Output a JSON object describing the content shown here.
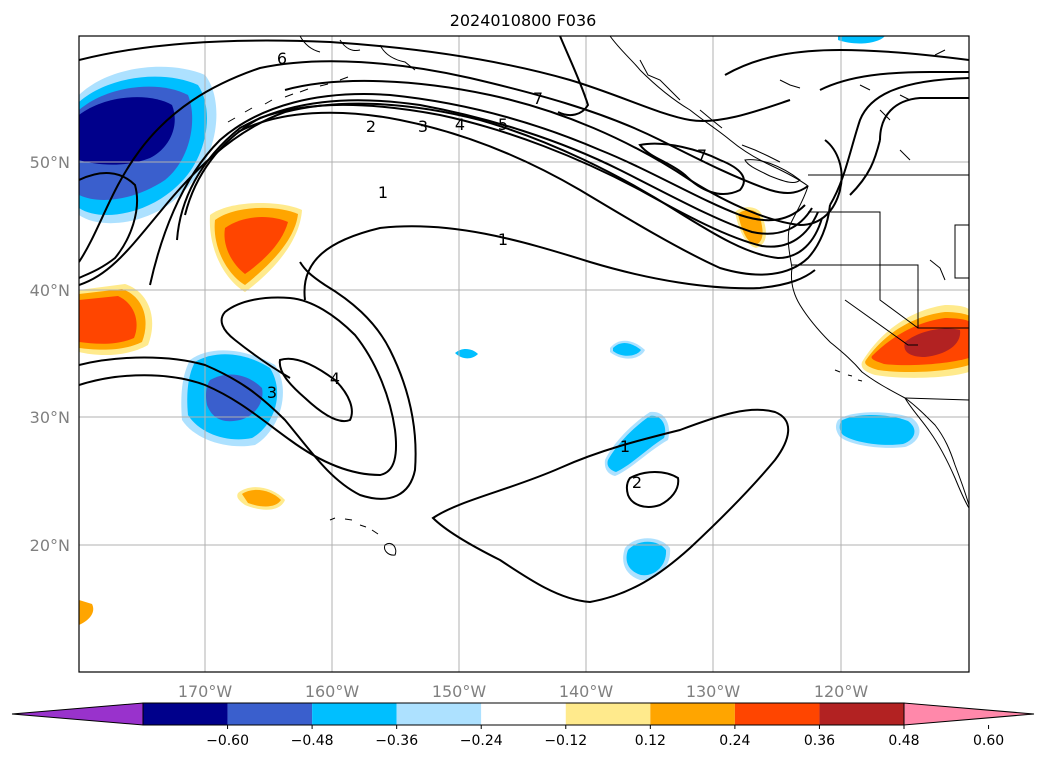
{
  "title": "2024010800 F036",
  "lat_labels": [
    "50°N",
    "40°N",
    "30°N",
    "20°N"
  ],
  "lon_labels": [
    "170°W",
    "160°W",
    "150°W",
    "140°W",
    "130°W",
    "120°W"
  ],
  "colorbar": {
    "ticks": [
      "−0.60",
      "−0.48",
      "−0.36",
      "−0.24",
      "−0.12",
      "0.12",
      "0.24",
      "0.36",
      "0.48",
      "0.60"
    ],
    "colors": [
      "#9932CC",
      "#00008B",
      "#3A5FCD",
      "#00BFFF",
      "#ADE1FF",
      "#FFFFFF",
      "#FFEA8C",
      "#FFA500",
      "#FF4500",
      "#B22222",
      "#FF88AA"
    ]
  },
  "contour_labels": [
    "6",
    "7",
    "7",
    "2",
    "3",
    "4",
    "5",
    "1",
    "1",
    "3",
    "4",
    "1",
    "2"
  ]
}
